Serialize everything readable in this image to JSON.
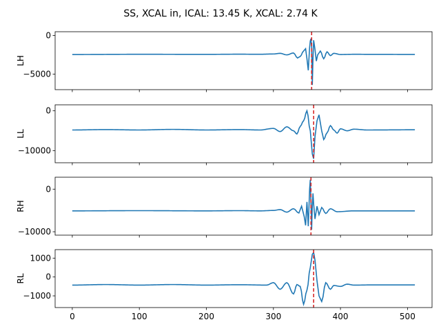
{
  "figure": {
    "title": "SS, XCAL in, ICAL: 13.45 K, XCAL: 2.74 K"
  },
  "colors": {
    "line": "#1f77b4",
    "marker": "#d62728",
    "axis": "#000000",
    "background": "#ffffff"
  },
  "chart_data": [
    {
      "type": "line",
      "ylabel": "LH",
      "xlim": [
        -25.6,
        536.6
      ],
      "ylim": [
        -7000,
        500
      ],
      "yticks": [
        0,
        -5000
      ],
      "ytick_labels": [
        "0",
        "−5000"
      ],
      "show_xtick_labels": false,
      "grid": false,
      "baseline": -2400,
      "peak_x": 357,
      "vline_x": 357,
      "series": [
        {
          "x": [
            0,
            100,
            200,
            250,
            280,
            300,
            310,
            320,
            330,
            336,
            340,
            345,
            348,
            350,
            352,
            354,
            355,
            356,
            357,
            358,
            359,
            360,
            362,
            364,
            366,
            370,
            375,
            380,
            385,
            390,
            400,
            420,
            450,
            511
          ],
          "values": [
            -2450,
            -2420,
            -2430,
            -2410,
            -2420,
            -2380,
            -2300,
            -2500,
            -2250,
            -2900,
            -2700,
            -2000,
            -1700,
            -3000,
            -4500,
            -1500,
            -700,
            -400,
            -1500,
            -6400,
            -3000,
            -600,
            -1800,
            -3300,
            -2500,
            -2000,
            -3000,
            -2100,
            -2600,
            -2300,
            -2450,
            -2420,
            -2430,
            -2440
          ]
        }
      ]
    },
    {
      "type": "line",
      "ylabel": "LL",
      "xlim": [
        -25.6,
        536.6
      ],
      "ylim": [
        -13000,
        1500
      ],
      "yticks": [
        0,
        -10000
      ],
      "ytick_labels": [
        "0",
        "−10000"
      ],
      "show_xtick_labels": false,
      "grid": false,
      "baseline": -4700,
      "peak_x": 360,
      "vline_x": 360,
      "series": [
        {
          "x": [
            0,
            50,
            100,
            150,
            200,
            250,
            280,
            300,
            310,
            320,
            330,
            335,
            340,
            345,
            350,
            355,
            358,
            360,
            362,
            365,
            368,
            372,
            375,
            380,
            385,
            390,
            395,
            400,
            410,
            420,
            440,
            511
          ],
          "values": [
            -4800,
            -4700,
            -4800,
            -4650,
            -4800,
            -4700,
            -4800,
            -4400,
            -5200,
            -4000,
            -5000,
            -5800,
            -3900,
            -2500,
            0,
            -5000,
            -10800,
            -12000,
            -6500,
            -2500,
            -1000,
            -5000,
            -7200,
            -5500,
            -3700,
            -4800,
            -5600,
            -4500,
            -5000,
            -4600,
            -4800,
            -4750
          ]
        }
      ]
    },
    {
      "type": "line",
      "ylabel": "RH",
      "xlim": [
        -25.6,
        536.6
      ],
      "ylim": [
        -10800,
        2800
      ],
      "yticks": [
        0,
        -10000
      ],
      "ytick_labels": [
        "0",
        "−10000"
      ],
      "show_xtick_labels": false,
      "grid": false,
      "baseline": -5100,
      "peak_x": 356,
      "vline_x": 356,
      "series": [
        {
          "x": [
            0,
            100,
            200,
            250,
            280,
            300,
            310,
            320,
            330,
            338,
            342,
            346,
            348,
            350,
            352,
            354,
            355,
            356,
            357,
            358,
            359,
            360,
            362,
            365,
            368,
            372,
            378,
            385,
            395,
            420,
            511
          ],
          "values": [
            -5100,
            -5050,
            -5100,
            -5050,
            -5100,
            -5000,
            -4800,
            -5400,
            -4600,
            -5600,
            -4000,
            -6500,
            -8500,
            -3000,
            -8700,
            0,
            2200,
            -3000,
            -9500,
            -4000,
            -1000,
            -3500,
            -7000,
            -4000,
            -6000,
            -4300,
            -5700,
            -4600,
            -5300,
            -5100,
            -5100
          ]
        }
      ]
    },
    {
      "type": "line",
      "ylabel": "RL",
      "xlim": [
        -25.6,
        536.6
      ],
      "ylim": [
        -1620,
        1450
      ],
      "yticks": [
        1000,
        0,
        -1000
      ],
      "ytick_labels": [
        "1000",
        "0",
        "−1000"
      ],
      "show_xtick_labels": true,
      "xticks": [
        0,
        100,
        200,
        300,
        400,
        500
      ],
      "xtick_labels": [
        "0",
        "100",
        "200",
        "300",
        "400",
        "500"
      ],
      "grid": false,
      "baseline": -420,
      "peak_x": 360,
      "vline_x": 360,
      "series": [
        {
          "x": [
            0,
            50,
            100,
            150,
            200,
            250,
            290,
            300,
            310,
            320,
            330,
            335,
            340,
            345,
            350,
            355,
            358,
            360,
            362,
            365,
            368,
            372,
            378,
            385,
            390,
            400,
            410,
            420,
            450,
            511
          ],
          "values": [
            -430,
            -400,
            -430,
            -400,
            -430,
            -410,
            -430,
            -300,
            -650,
            -300,
            -900,
            -400,
            -500,
            -1450,
            -700,
            500,
            1200,
            1300,
            900,
            -200,
            -1000,
            -1300,
            -300,
            -650,
            -450,
            -500,
            -380,
            -430,
            -420,
            -420
          ]
        }
      ]
    }
  ]
}
